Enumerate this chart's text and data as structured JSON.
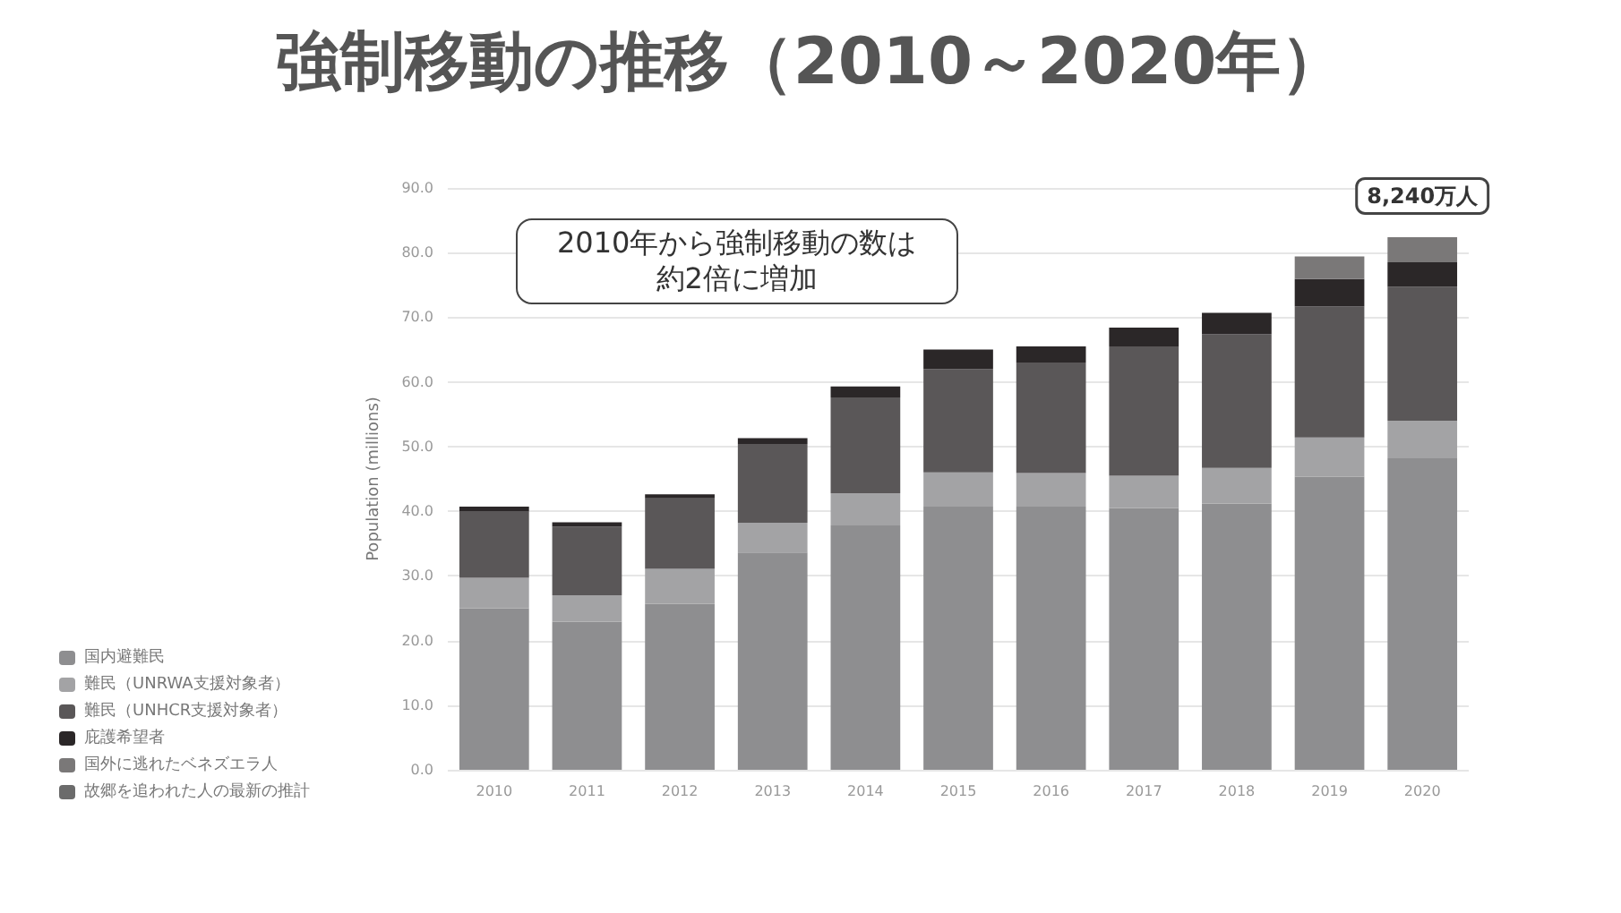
{
  "chart_data": {
    "type": "bar",
    "title": "強制移動の推移（2010～2020年）",
    "ylabel": "Population (millions)",
    "categories": [
      "2010",
      "2011",
      "2012",
      "2013",
      "2014",
      "2015",
      "2016",
      "2017",
      "2018",
      "2019",
      "2020"
    ],
    "stacked": true,
    "series": [
      {
        "name": "国内避難民",
        "color": "#8e8e90",
        "values": [
          25.0,
          22.9,
          25.7,
          33.6,
          37.8,
          40.7,
          40.7,
          40.5,
          41.2,
          45.3,
          48.2
        ]
      },
      {
        "name": "難民（UNRWA支援対象者）",
        "color": "#a3a3a5",
        "values": [
          4.7,
          4.1,
          5.4,
          4.6,
          5.0,
          5.3,
          5.2,
          5.0,
          5.5,
          6.1,
          5.8
        ]
      },
      {
        "name": "難民（UNHCR支援対象者）",
        "color": "#5a5758",
        "values": [
          10.3,
          10.6,
          10.9,
          12.2,
          14.8,
          16.0,
          17.1,
          20.0,
          20.7,
          20.3,
          20.7
        ]
      },
      {
        "name": "庇護希望者",
        "color": "#2b2728",
        "values": [
          0.7,
          0.7,
          0.6,
          0.9,
          1.7,
          3.0,
          2.5,
          2.9,
          3.3,
          4.2,
          3.8
        ]
      },
      {
        "name": "国外に逃れたベネズエラ人",
        "color": "#7a7878",
        "values": [
          null,
          null,
          null,
          null,
          null,
          null,
          null,
          null,
          null,
          3.5,
          3.9
        ]
      },
      {
        "name": "故郷を追われた人の最新の推計",
        "color": "#6b6b6b",
        "values": [
          null,
          null,
          null,
          null,
          null,
          null,
          null,
          null,
          null,
          null,
          null
        ]
      }
    ],
    "ylim": [
      0,
      90
    ],
    "yticks": [
      {
        "value": 0,
        "label": "0.0"
      },
      {
        "value": 10,
        "label": "10.0"
      },
      {
        "value": 20,
        "label": "20.0"
      },
      {
        "value": 30,
        "label": "30.0"
      },
      {
        "value": 40,
        "label": "40.0"
      },
      {
        "value": 50,
        "label": "50.0"
      },
      {
        "value": 60,
        "label": "60.0"
      },
      {
        "value": 70,
        "label": "70.0"
      },
      {
        "value": 80,
        "label": "80.0"
      },
      {
        "value": 90,
        "label": "90.0"
      }
    ],
    "grid": "y",
    "legend": "bottom left",
    "annotations": [
      "2010年から強制移動の数は",
      "約2倍に増加",
      {
        "text": "8,240万人",
        "x": "2020",
        "y": 82.4
      }
    ]
  }
}
